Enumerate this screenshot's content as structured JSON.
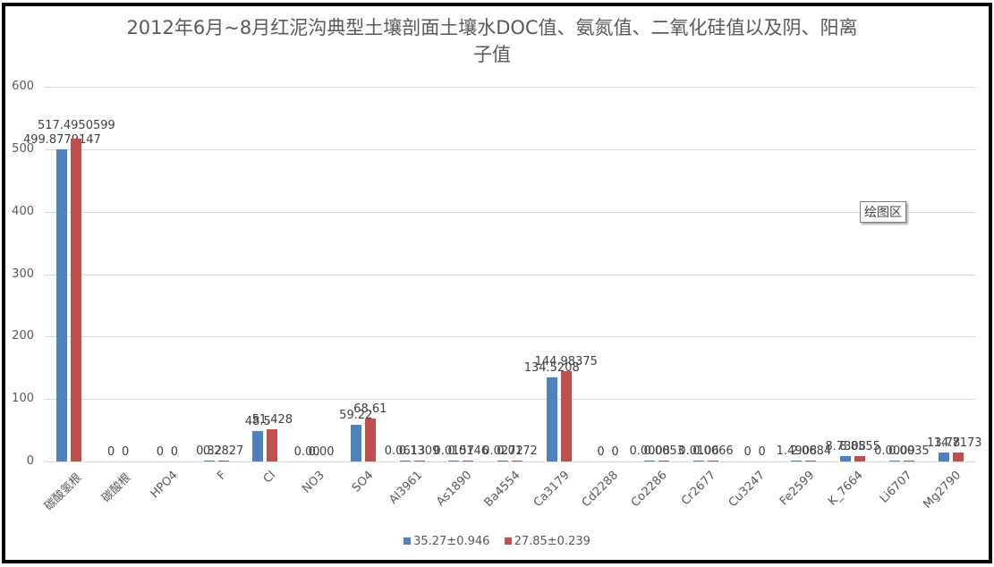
{
  "chart_data": {
    "type": "bar",
    "title": "2012年6月~8月红泥沟典型土壤剖面土壤水DOC值、氨氮值、二氧化硅值以及阴、阳离子值",
    "title_lines": [
      "2012年6月~8月红泥沟典型土壤剖面土壤水DOC值、氨氮值、二氧化硅值以及阴、阳离",
      "子值"
    ],
    "xlabel": "",
    "ylabel": "",
    "ylim": [
      0,
      600
    ],
    "yticks": [
      "0",
      "100",
      "200",
      "300",
      "400",
      "500",
      "600"
    ],
    "grid": true,
    "legend_position": "bottom",
    "categories": [
      "碳酸氢根",
      "碳酸根",
      "HPO4",
      "F",
      "Cl",
      "NO3",
      "SO4",
      "Al3961",
      "As1890",
      "Ba4554",
      "Ca3179",
      "Cd2288",
      "Co2286",
      "Cr2677",
      "Cu3247",
      "Fe2599",
      "K_7664",
      "Li6707",
      "Mg2790"
    ],
    "series": [
      {
        "name": "35.27±0.946",
        "color": "#4f81bd",
        "values": [
          499.8779147,
          0,
          0,
          0.32,
          48.5,
          0.0,
          59.22,
          0.0613,
          0.0157,
          0.0272,
          134.5208,
          0,
          0.0008,
          0.0106,
          0,
          1.4908,
          8.7308,
          0.0009,
          13.78
        ],
        "labels": [
          "499.8779147",
          "0",
          "0",
          "0.32",
          "48.5",
          "0.00",
          "59.22",
          "0.0613",
          "0.0157",
          "0.0272",
          "134.5208",
          "0",
          "0.0008",
          "0.0106",
          "0",
          "1.4908",
          "8.7308",
          "0.0009",
          "13.78"
        ]
      },
      {
        "name": "27.85±0.239",
        "color": "#c0504d",
        "values": [
          517.4950599,
          0,
          0,
          0.2827,
          51.428,
          0.0,
          68.61,
          0.1309,
          0.0146,
          0.0172,
          144.98375,
          0,
          0.0053,
          0.0066,
          0,
          2.0684,
          8.8555,
          0.0035,
          14.7173
        ],
        "labels": [
          "517.4950599",
          "0",
          "0",
          "0.2827",
          "51.428",
          "0.00",
          "68.61",
          "0.1309",
          "0.0146",
          "0.0172",
          "144.98375",
          "0",
          "0.0053",
          "0.0066",
          "0",
          "2.0684",
          "8.8555",
          "0.0035",
          "14.7173"
        ]
      }
    ]
  },
  "tooltip": {
    "text": "绘图区"
  }
}
